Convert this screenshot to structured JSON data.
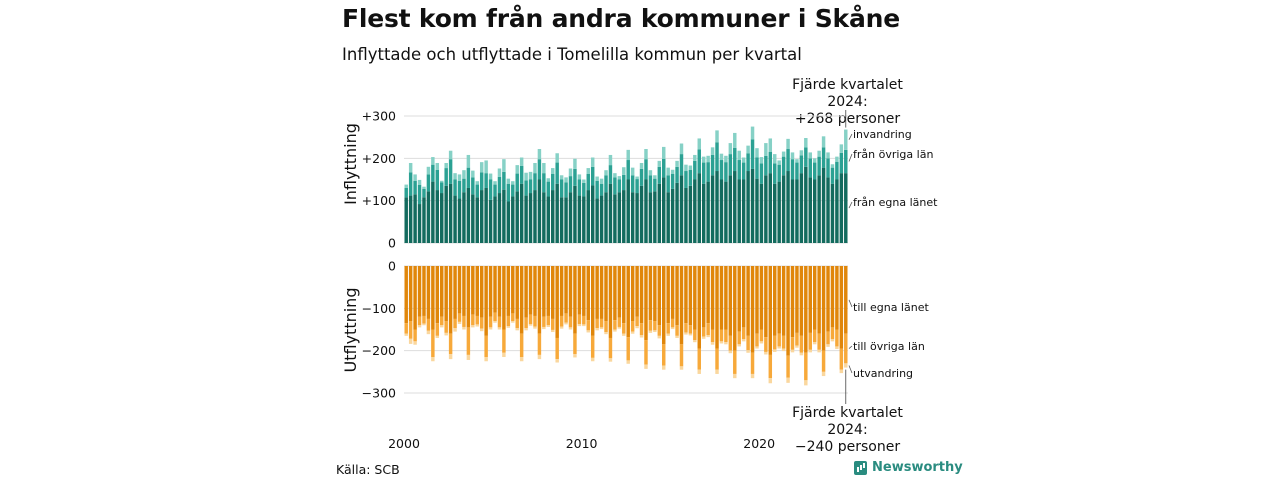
{
  "title": "Flest kom från andra kommuner i Skåne",
  "subtitle": "Inflyttade och utflyttade i Tomelilla kommun per kvartal",
  "source": "Källa: SCB",
  "brand": "Newsworthy",
  "annotations": {
    "top_line1": "Fjärde kvartalet 2024:",
    "top_line2": "+268 personer",
    "bottom_line1": "Fjärde kvartalet 2024:",
    "bottom_line2": "−240 personer"
  },
  "colors": {
    "in_own_county": "#136b5e",
    "in_other_counties": "#2ba193",
    "in_immigration": "#86d1c6",
    "out_own_county": "#e0860a",
    "out_other_counties": "#f7a93a",
    "out_emigration": "#fad79e"
  },
  "chart_data": [
    {
      "type": "bar",
      "stacked": true,
      "ylabel": "Inflyttning",
      "ylim": [
        0,
        300
      ],
      "yticks": [
        0,
        100,
        200,
        300
      ],
      "ytick_labels": [
        "0",
        "+100",
        "+200",
        "+300"
      ],
      "xticks": [
        "2000",
        "2010",
        "2020"
      ],
      "x_start": "2000 Q1",
      "x_end": "2024 Q4",
      "periods_per_year": 4,
      "series_labels": [
        "från egna länet",
        "från övriga län",
        "invandring"
      ],
      "series": [
        {
          "name": "från egna länet",
          "values": [
            108,
            112,
            115,
            92,
            108,
            122,
            145,
            125,
            118,
            135,
            140,
            112,
            105,
            120,
            130,
            115,
            108,
            125,
            130,
            102,
            110,
            118,
            126,
            98,
            110,
            122,
            140,
            112,
            118,
            125,
            150,
            120,
            110,
            125,
            140,
            108,
            108,
            120,
            135,
            112,
            110,
            125,
            136,
            105,
            112,
            120,
            140,
            115,
            120,
            125,
            150,
            120,
            118,
            135,
            150,
            120,
            122,
            140,
            155,
            120,
            128,
            142,
            160,
            130,
            135,
            150,
            165,
            140,
            145,
            160,
            170,
            150,
            145,
            160,
            170,
            150,
            150,
            170,
            175,
            152,
            140,
            160,
            165,
            140,
            145,
            160,
            170,
            150,
            150,
            165,
            180,
            155,
            150,
            160,
            178,
            155,
            140,
            150,
            165,
            165
          ]
        },
        {
          "name": "från övriga län",
          "values": [
            22,
            55,
            32,
            45,
            20,
            40,
            40,
            48,
            25,
            42,
            58,
            38,
            42,
            32,
            48,
            40,
            30,
            42,
            35,
            48,
            28,
            38,
            42,
            42,
            28,
            42,
            42,
            36,
            32,
            40,
            48,
            45,
            35,
            38,
            50,
            42,
            35,
            38,
            40,
            38,
            32,
            38,
            44,
            42,
            28,
            40,
            44,
            40,
            30,
            36,
            46,
            40,
            33,
            40,
            48,
            40,
            30,
            40,
            44,
            40,
            35,
            38,
            50,
            40,
            38,
            44,
            56,
            50,
            46,
            48,
            68,
            46,
            46,
            50,
            55,
            46,
            40,
            42,
            70,
            50,
            48,
            46,
            50,
            48,
            40,
            44,
            52,
            48,
            40,
            42,
            46,
            45,
            40,
            44,
            48,
            45,
            38,
            42,
            48,
            55
          ]
        },
        {
          "name": "invandring",
          "values": [
            8,
            22,
            15,
            12,
            5,
            18,
            18,
            16,
            4,
            12,
            20,
            15,
            15,
            20,
            30,
            16,
            8,
            24,
            30,
            14,
            8,
            20,
            30,
            12,
            8,
            20,
            20,
            18,
            18,
            24,
            24,
            24,
            8,
            14,
            22,
            10,
            12,
            18,
            24,
            12,
            8,
            14,
            22,
            10,
            12,
            12,
            24,
            10,
            8,
            18,
            24,
            18,
            6,
            14,
            24,
            12,
            8,
            14,
            28,
            18,
            10,
            14,
            25,
            15,
            10,
            14,
            26,
            14,
            15,
            18,
            28,
            15,
            15,
            26,
            35,
            22,
            12,
            18,
            30,
            22,
            15,
            30,
            32,
            22,
            10,
            12,
            24,
            16,
            8,
            12,
            22,
            14,
            10,
            14,
            26,
            14,
            8,
            12,
            20,
            48
          ]
        }
      ]
    },
    {
      "type": "bar",
      "stacked": true,
      "ylabel": "Utflyttning",
      "ylim": [
        -300,
        0
      ],
      "yticks": [
        0,
        -100,
        -200,
        -300
      ],
      "ytick_labels": [
        "0",
        "−100",
        "−200",
        "−300"
      ],
      "series_labels": [
        "till egna länet",
        "till övriga län",
        "utvandring"
      ],
      "series": [
        {
          "name": "till egna länet",
          "values": [
            -135,
            -130,
            -150,
            -120,
            -118,
            -125,
            -150,
            -135,
            -120,
            -130,
            -160,
            -125,
            -112,
            -118,
            -145,
            -115,
            -118,
            -122,
            -165,
            -120,
            -110,
            -120,
            -150,
            -118,
            -112,
            -125,
            -160,
            -122,
            -115,
            -118,
            -160,
            -120,
            -118,
            -125,
            -170,
            -118,
            -112,
            -120,
            -160,
            -115,
            -118,
            -128,
            -165,
            -125,
            -125,
            -130,
            -170,
            -128,
            -122,
            -135,
            -168,
            -130,
            -120,
            -135,
            -175,
            -128,
            -130,
            -140,
            -185,
            -135,
            -125,
            -140,
            -185,
            -135,
            -140,
            -150,
            -195,
            -145,
            -135,
            -150,
            -195,
            -150,
            -150,
            -165,
            -200,
            -155,
            -145,
            -165,
            -205,
            -160,
            -150,
            -168,
            -210,
            -165,
            -160,
            -165,
            -212,
            -168,
            -158,
            -165,
            -205,
            -158,
            -150,
            -160,
            -200,
            -155,
            -145,
            -150,
            -195,
            -160
          ]
        },
        {
          "name": "till övriga län",
          "values": [
            -25,
            -42,
            -28,
            -20,
            -18,
            -28,
            -65,
            -30,
            -20,
            -28,
            -48,
            -22,
            -20,
            -26,
            -65,
            -25,
            -20,
            -26,
            -50,
            -25,
            -20,
            -25,
            -55,
            -24,
            -18,
            -22,
            -55,
            -25,
            -22,
            -25,
            -50,
            -24,
            -22,
            -26,
            -50,
            -25,
            -22,
            -25,
            -48,
            -22,
            -20,
            -24,
            -52,
            -22,
            -20,
            -26,
            -48,
            -22,
            -22,
            -25,
            -55,
            -25,
            -22,
            -28,
            -58,
            -25,
            -22,
            -25,
            -50,
            -25,
            -20,
            -25,
            -52,
            -22,
            -20,
            -25,
            -50,
            -22,
            -28,
            -30,
            -50,
            -28,
            -30,
            -35,
            -55,
            -30,
            -28,
            -34,
            -50,
            -30,
            -28,
            -35,
            -55,
            -32,
            -30,
            -30,
            -52,
            -30,
            -30,
            -40,
            -65,
            -40,
            -30,
            -38,
            -50,
            -30,
            -28,
            -40,
            -50,
            -70
          ]
        },
        {
          "name": "utvandring",
          "values": [
            -5,
            -12,
            -8,
            -5,
            -4,
            -8,
            -10,
            -5,
            -5,
            -6,
            -12,
            -8,
            -5,
            -6,
            -12,
            -5,
            -5,
            -6,
            -10,
            -5,
            -4,
            -5,
            -10,
            -4,
            -4,
            -5,
            -10,
            -5,
            -4,
            -5,
            -10,
            -5,
            -4,
            -5,
            -8,
            -5,
            -4,
            -5,
            -8,
            -5,
            -4,
            -5,
            -8,
            -5,
            -4,
            -5,
            -8,
            -5,
            -4,
            -5,
            -8,
            -5,
            -5,
            -6,
            -10,
            -5,
            -4,
            -6,
            -10,
            -5,
            -4,
            -5,
            -8,
            -5,
            -4,
            -5,
            -10,
            -5,
            -5,
            -6,
            -10,
            -5,
            -5,
            -6,
            -10,
            -5,
            -5,
            -6,
            -10,
            -5,
            -5,
            -6,
            -12,
            -6,
            -5,
            -6,
            -12,
            -6,
            -5,
            -6,
            -12,
            -6,
            -5,
            -6,
            -10,
            -6,
            -5,
            -6,
            -8,
            -10
          ]
        }
      ]
    }
  ]
}
